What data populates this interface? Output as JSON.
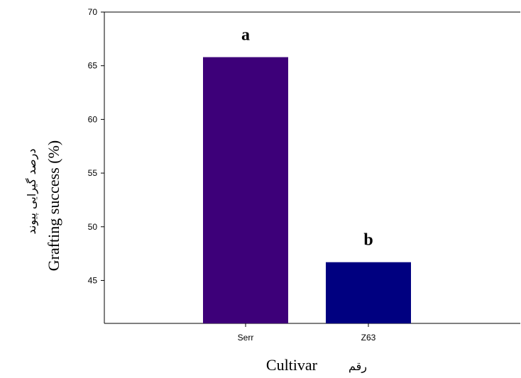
{
  "chart_data": {
    "type": "bar",
    "categories": [
      "Serr",
      "Z63"
    ],
    "values": [
      65.8,
      46.7
    ],
    "group_letters": [
      "a",
      "b"
    ],
    "bar_colors": [
      "#3d0079",
      "#000080"
    ],
    "ylim": [
      41,
      70
    ],
    "y_ticks": [
      45,
      50,
      55,
      60,
      65,
      70
    ],
    "y_tick_labels": [
      "45",
      "50",
      "55",
      "60",
      "65",
      "70"
    ],
    "xlabel": "Cultivar",
    "xlabel_persian": "رقم",
    "ylabel": "Grafting success (%)",
    "ylabel_persian": "درصد گیرایی پیوند",
    "grid": false,
    "legend": "none"
  }
}
